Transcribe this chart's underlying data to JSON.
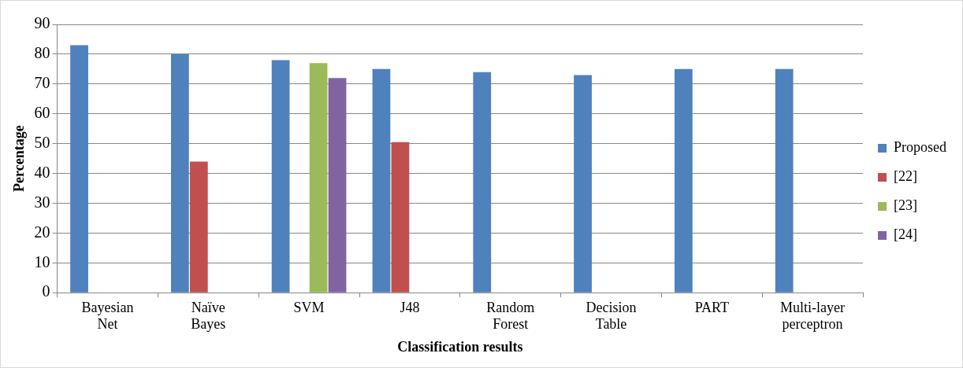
{
  "chart_data": {
    "type": "bar",
    "xlabel": "Classification results",
    "ylabel": "Percentage",
    "categories": [
      "Bayesian Net",
      "Naïve Bayes",
      "SVM",
      "J48",
      "Random Forest",
      "Decision Table",
      "PART",
      "Multi-layer perceptron"
    ],
    "series": [
      {
        "name": "Proposed",
        "color": "#4f81bd",
        "values": [
          83,
          80,
          78,
          75,
          74,
          73,
          75,
          75
        ]
      },
      {
        "name": "[22]",
        "color": "#c0504d",
        "values": [
          null,
          44,
          null,
          50.5,
          null,
          null,
          null,
          null
        ]
      },
      {
        "name": "[23]",
        "color": "#9bbb59",
        "values": [
          null,
          null,
          77,
          null,
          null,
          null,
          null,
          null
        ]
      },
      {
        "name": "[24]",
        "color": "#8064a2",
        "values": [
          null,
          null,
          72,
          null,
          null,
          null,
          null,
          null
        ]
      }
    ],
    "ylim": [
      0,
      90
    ],
    "yticks": [
      0,
      10,
      20,
      30,
      40,
      50,
      60,
      70,
      80,
      90
    ],
    "grid": "y",
    "legend": "right"
  }
}
